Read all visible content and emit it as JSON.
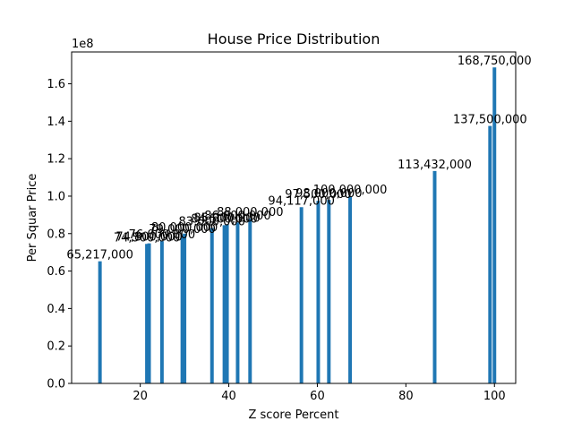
{
  "chart_data": {
    "type": "bar",
    "title": "House Price Distribution",
    "xlabel": "Z score Percent",
    "ylabel": "Per Squar Price",
    "y_offset_label": "1e8",
    "xlim": [
      4.5,
      104.8
    ],
    "ylim": [
      0,
      177000000
    ],
    "x_ticks": [
      20,
      40,
      60,
      80,
      100
    ],
    "y_ticks": [
      0,
      20000000,
      40000000,
      60000000,
      80000000,
      100000000,
      120000000,
      140000000,
      160000000
    ],
    "y_tick_labels": [
      "0.0",
      "0.2",
      "0.4",
      "0.6",
      "0.8",
      "1.0",
      "1.2",
      "1.4",
      "1.6"
    ],
    "bar_color": "#1f77b4",
    "bar_width": 0.8,
    "grid": false,
    "points": [
      {
        "x": 10.9,
        "y": 65217000,
        "label": "65,217,000"
      },
      {
        "x": 21.5,
        "y": 74500000,
        "label": "74,500,000"
      },
      {
        "x": 22.0,
        "y": 74800000,
        "label": "74,800,000"
      },
      {
        "x": 24.9,
        "y": 76000000,
        "label": "76,000,000"
      },
      {
        "x": 29.5,
        "y": 79000000,
        "label": "79,000,000"
      },
      {
        "x": 30.0,
        "y": 80000000,
        "label": "80,000,000"
      },
      {
        "x": 36.2,
        "y": 83000000,
        "label": "83,000,000"
      },
      {
        "x": 39.0,
        "y": 84500000,
        "label": "84,500,000"
      },
      {
        "x": 39.6,
        "y": 85000000,
        "label": "85,000,000"
      },
      {
        "x": 42.0,
        "y": 86000000,
        "label": "86,000,000"
      },
      {
        "x": 44.8,
        "y": 88000000,
        "label": "88,000,000"
      },
      {
        "x": 56.4,
        "y": 94117000,
        "label": "94,117,000"
      },
      {
        "x": 60.2,
        "y": 97500000,
        "label": "97,500,000"
      },
      {
        "x": 62.6,
        "y": 98000000,
        "label": "98,000,000"
      },
      {
        "x": 67.4,
        "y": 100000000,
        "label": "100,000,000"
      },
      {
        "x": 86.5,
        "y": 113432000,
        "label": "113,432,000"
      },
      {
        "x": 99.0,
        "y": 137500000,
        "label": "137,500,000"
      },
      {
        "x": 100.0,
        "y": 168750000,
        "label": "168,750,000"
      }
    ]
  }
}
